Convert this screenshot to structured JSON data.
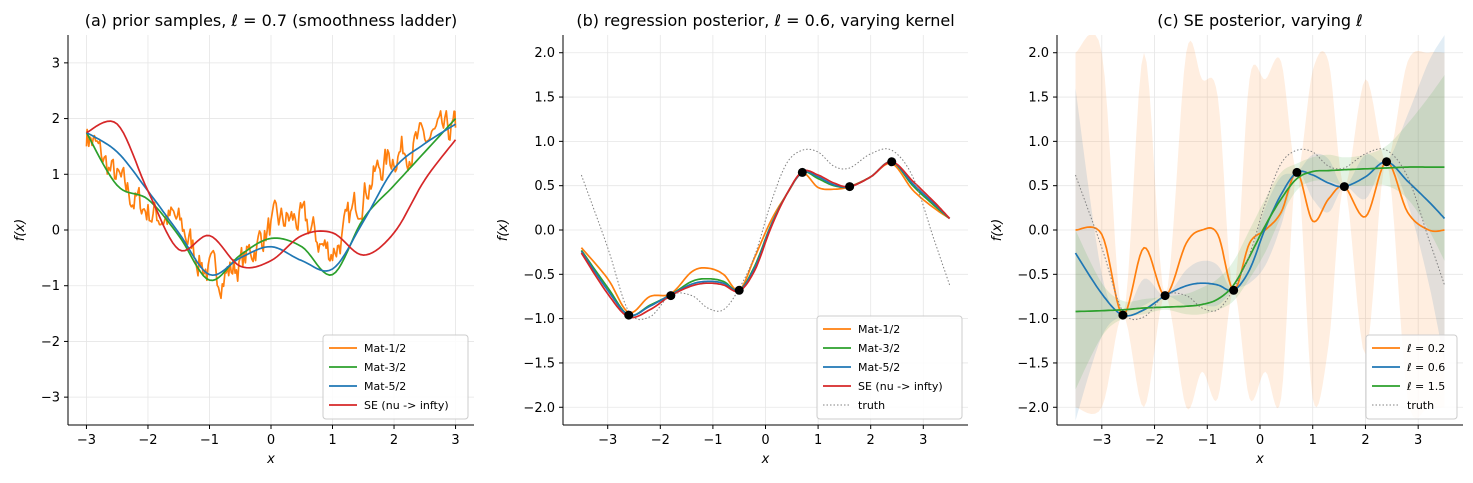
{
  "chart_data": [
    {
      "type": "line",
      "title": "(a) prior samples, ℓ = 0.7 (smoothness ladder)",
      "xlabel": "x",
      "ylabel": "f(x)",
      "xlim": [
        -3.3,
        3.3
      ],
      "ylim": [
        -3.5,
        3.5
      ],
      "xticks": [
        -3,
        -2,
        -1,
        0,
        1,
        2,
        3
      ],
      "yticks": [
        -3,
        -2,
        -1,
        0,
        1,
        2,
        3
      ],
      "xtick_labels": [
        "−3",
        "−2",
        "−1",
        "0",
        "1",
        "2",
        "3"
      ],
      "ytick_labels": [
        "−3",
        "−2",
        "−1",
        "0",
        "1",
        "2",
        "3"
      ],
      "grid": true,
      "legend_loc": "lower right",
      "x": [
        -3.0,
        -2.5,
        -2.0,
        -1.5,
        -1.0,
        -0.5,
        0.0,
        0.5,
        1.0,
        1.5,
        2.0,
        2.5,
        3.0
      ],
      "series": [
        {
          "name": "Mat-1/2",
          "color": "#ff7f0e",
          "rough": true,
          "values": [
            1.75,
            0.9,
            0.35,
            0.1,
            -0.75,
            -0.6,
            0.05,
            0.15,
            -0.35,
            0.7,
            1.35,
            1.6,
            1.8
          ]
        },
        {
          "name": "Mat-3/2",
          "color": "#2ca02c",
          "values": [
            1.75,
            0.8,
            0.55,
            -0.1,
            -0.9,
            -0.45,
            -0.15,
            -0.3,
            -0.8,
            0.2,
            0.8,
            1.4,
            2.0
          ]
        },
        {
          "name": "Mat-5/2",
          "color": "#1f77b4",
          "values": [
            1.75,
            1.4,
            0.7,
            -0.05,
            -0.8,
            -0.5,
            -0.3,
            -0.55,
            -0.7,
            0.15,
            1.1,
            1.55,
            1.9
          ]
        },
        {
          "name": "SE (nu -> infty)",
          "color": "#d62728",
          "values": [
            1.75,
            1.9,
            0.7,
            -0.35,
            -0.1,
            -0.65,
            -0.55,
            -0.1,
            -0.05,
            -0.45,
            -0.05,
            0.9,
            1.62
          ]
        }
      ]
    },
    {
      "type": "line",
      "title": "(b) regression posterior, ℓ = 0.6, varying kernel",
      "xlabel": "x",
      "ylabel": "f(x)",
      "xlim": [
        -3.85,
        3.85
      ],
      "ylim": [
        -2.2,
        2.2
      ],
      "xticks": [
        -3,
        -2,
        -1,
        0,
        1,
        2,
        3
      ],
      "yticks": [
        -2.0,
        -1.5,
        -1.0,
        -0.5,
        0.0,
        0.5,
        1.0,
        1.5,
        2.0
      ],
      "xtick_labels": [
        "−3",
        "−2",
        "−1",
        "0",
        "1",
        "2",
        "3"
      ],
      "ytick_labels": [
        "−2.0",
        "−1.5",
        "−1.0",
        "−0.5",
        "0.0",
        "0.5",
        "1.0",
        "1.5",
        "2.0"
      ],
      "grid": true,
      "legend_loc": "lower right",
      "x": [
        -3.5,
        -3.0,
        -2.6,
        -2.2,
        -1.8,
        -1.4,
        -1.1,
        -0.8,
        -0.5,
        -0.2,
        0.1,
        0.4,
        0.7,
        1.0,
        1.3,
        1.6,
        2.0,
        2.4,
        2.8,
        3.2,
        3.5
      ],
      "series": [
        {
          "name": "Mat-1/2",
          "color": "#ff7f0e",
          "values": [
            -0.2,
            -0.55,
            -0.93,
            -0.75,
            -0.72,
            -0.47,
            -0.43,
            -0.5,
            -0.68,
            -0.3,
            0.1,
            0.4,
            0.64,
            0.48,
            0.46,
            0.49,
            0.6,
            0.75,
            0.45,
            0.25,
            0.13
          ]
        },
        {
          "name": "Mat-3/2",
          "color": "#2ca02c",
          "values": [
            -0.23,
            -0.65,
            -0.96,
            -0.85,
            -0.73,
            -0.58,
            -0.55,
            -0.58,
            -0.68,
            -0.4,
            0.05,
            0.4,
            0.65,
            0.58,
            0.5,
            0.49,
            0.6,
            0.77,
            0.5,
            0.28,
            0.13
          ]
        },
        {
          "name": "Mat-5/2",
          "color": "#1f77b4",
          "values": [
            -0.24,
            -0.68,
            -0.96,
            -0.86,
            -0.73,
            -0.61,
            -0.58,
            -0.6,
            -0.68,
            -0.42,
            0.04,
            0.4,
            0.65,
            0.6,
            0.51,
            0.49,
            0.6,
            0.77,
            0.52,
            0.3,
            0.13
          ]
        },
        {
          "name": "SE (nu -> infty)",
          "color": "#d62728",
          "values": [
            -0.26,
            -0.72,
            -0.98,
            -0.9,
            -0.74,
            -0.63,
            -0.6,
            -0.62,
            -0.69,
            -0.45,
            0.02,
            0.4,
            0.66,
            0.62,
            0.53,
            0.49,
            0.6,
            0.77,
            0.55,
            0.32,
            0.13
          ]
        },
        {
          "name": "truth",
          "color": "#808080",
          "dotted": true,
          "values": [
            0.62,
            -0.2,
            -0.92,
            -0.98,
            -0.73,
            -0.74,
            -0.88,
            -0.9,
            -0.66,
            -0.28,
            0.3,
            0.75,
            0.9,
            0.88,
            0.72,
            0.7,
            0.86,
            0.9,
            0.6,
            -0.1,
            -0.62
          ]
        }
      ],
      "observations": {
        "x": [
          -2.6,
          -1.8,
          -0.5,
          0.7,
          1.6,
          2.4
        ],
        "y": [
          -0.96,
          -0.74,
          -0.68,
          0.65,
          0.49,
          0.77
        ]
      }
    },
    {
      "type": "line",
      "title": "(c) SE posterior, varying ℓ",
      "xlabel": "x",
      "ylabel": "f(x)",
      "xlim": [
        -3.85,
        3.85
      ],
      "ylim": [
        -2.2,
        2.2
      ],
      "xticks": [
        -3,
        -2,
        -1,
        0,
        1,
        2,
        3
      ],
      "yticks": [
        -2.0,
        -1.5,
        -1.0,
        -0.5,
        0.0,
        0.5,
        1.0,
        1.5,
        2.0
      ],
      "xtick_labels": [
        "−3",
        "−2",
        "−1",
        "0",
        "1",
        "2",
        "3"
      ],
      "ytick_labels": [
        "−2.0",
        "−1.5",
        "−1.0",
        "−0.5",
        "0.0",
        "0.5",
        "1.0",
        "1.5",
        "2.0"
      ],
      "grid": true,
      "legend_loc": "lower right",
      "x": [
        -3.5,
        -3.0,
        -2.6,
        -2.2,
        -1.8,
        -1.4,
        -1.1,
        -0.8,
        -0.5,
        -0.2,
        0.1,
        0.4,
        0.7,
        1.0,
        1.3,
        1.6,
        2.0,
        2.4,
        2.8,
        3.2,
        3.5
      ],
      "series": [
        {
          "name": "ℓ = 0.2",
          "color": "#ff7f0e",
          "band_lo": [
            -2.0,
            -2.0,
            -0.96,
            -2.0,
            -0.74,
            -2.0,
            -1.6,
            -1.9,
            -0.68,
            -1.9,
            -1.6,
            -1.9,
            0.65,
            -1.9,
            -1.3,
            0.49,
            -1.4,
            0.77,
            -1.9,
            -2.0,
            -2.0
          ],
          "band_hi": [
            2.0,
            2.0,
            -0.96,
            2.0,
            -0.74,
            2.0,
            1.7,
            1.5,
            -0.68,
            1.7,
            1.7,
            1.9,
            0.65,
            1.8,
            1.9,
            0.49,
            1.7,
            0.77,
            1.9,
            2.0,
            2.0
          ],
          "values": [
            0.0,
            -0.05,
            -0.96,
            -0.2,
            -0.74,
            -0.15,
            0.0,
            -0.05,
            -0.68,
            -0.15,
            0.0,
            0.2,
            0.65,
            0.1,
            0.35,
            0.49,
            0.15,
            0.77,
            0.2,
            0.0,
            0.0
          ]
        },
        {
          "name": "ℓ = 0.6",
          "color": "#1f77b4",
          "band_lo": [
            -2.15,
            -1.2,
            -0.96,
            -0.85,
            -0.74,
            -0.85,
            -0.85,
            -0.85,
            -0.68,
            -0.6,
            -0.4,
            0.05,
            0.65,
            0.35,
            0.2,
            0.49,
            0.35,
            0.77,
            0.3,
            -0.6,
            -1.5
          ],
          "band_hi": [
            1.6,
            -0.5,
            -0.96,
            -0.55,
            -0.74,
            -0.45,
            -0.35,
            -0.4,
            -0.68,
            -0.3,
            0.25,
            0.6,
            0.65,
            0.85,
            0.8,
            0.49,
            0.85,
            0.77,
            1.3,
            1.9,
            2.2
          ],
          "values": [
            -0.26,
            -0.72,
            -0.96,
            -0.9,
            -0.74,
            -0.63,
            -0.6,
            -0.62,
            -0.68,
            -0.45,
            0.02,
            0.4,
            0.65,
            0.62,
            0.53,
            0.49,
            0.6,
            0.77,
            0.55,
            0.32,
            0.13
          ]
        },
        {
          "name": "ℓ = 1.5",
          "color": "#2ca02c",
          "band_lo": [
            -1.8,
            -1.2,
            -1.0,
            -0.95,
            -0.9,
            -0.95,
            -0.95,
            -0.9,
            -0.8,
            -0.55,
            -0.25,
            0.15,
            0.45,
            0.55,
            0.55,
            0.5,
            0.5,
            0.5,
            0.35,
            0.0,
            -0.35
          ],
          "band_hi": [
            0.0,
            -0.6,
            -0.8,
            -0.78,
            -0.75,
            -0.72,
            -0.65,
            -0.55,
            -0.35,
            0.0,
            0.35,
            0.65,
            0.75,
            0.82,
            0.85,
            0.82,
            0.85,
            0.95,
            1.2,
            1.5,
            1.75
          ],
          "values": [
            -0.92,
            -0.91,
            -0.9,
            -0.88,
            -0.87,
            -0.86,
            -0.84,
            -0.78,
            -0.62,
            -0.3,
            0.05,
            0.35,
            0.58,
            0.66,
            0.67,
            0.68,
            0.69,
            0.7,
            0.71,
            0.71,
            0.71
          ]
        },
        {
          "name": "truth",
          "color": "#808080",
          "dotted": true,
          "values": [
            0.62,
            -0.2,
            -0.92,
            -0.98,
            -0.73,
            -0.74,
            -0.88,
            -0.9,
            -0.66,
            -0.28,
            0.3,
            0.75,
            0.9,
            0.88,
            0.72,
            0.7,
            0.86,
            0.9,
            0.6,
            -0.1,
            -0.62
          ]
        }
      ],
      "observations": {
        "x": [
          -2.6,
          -1.8,
          -0.5,
          0.7,
          1.6,
          2.4
        ],
        "y": [
          -0.96,
          -0.74,
          -0.68,
          0.65,
          0.49,
          0.77
        ]
      }
    }
  ]
}
